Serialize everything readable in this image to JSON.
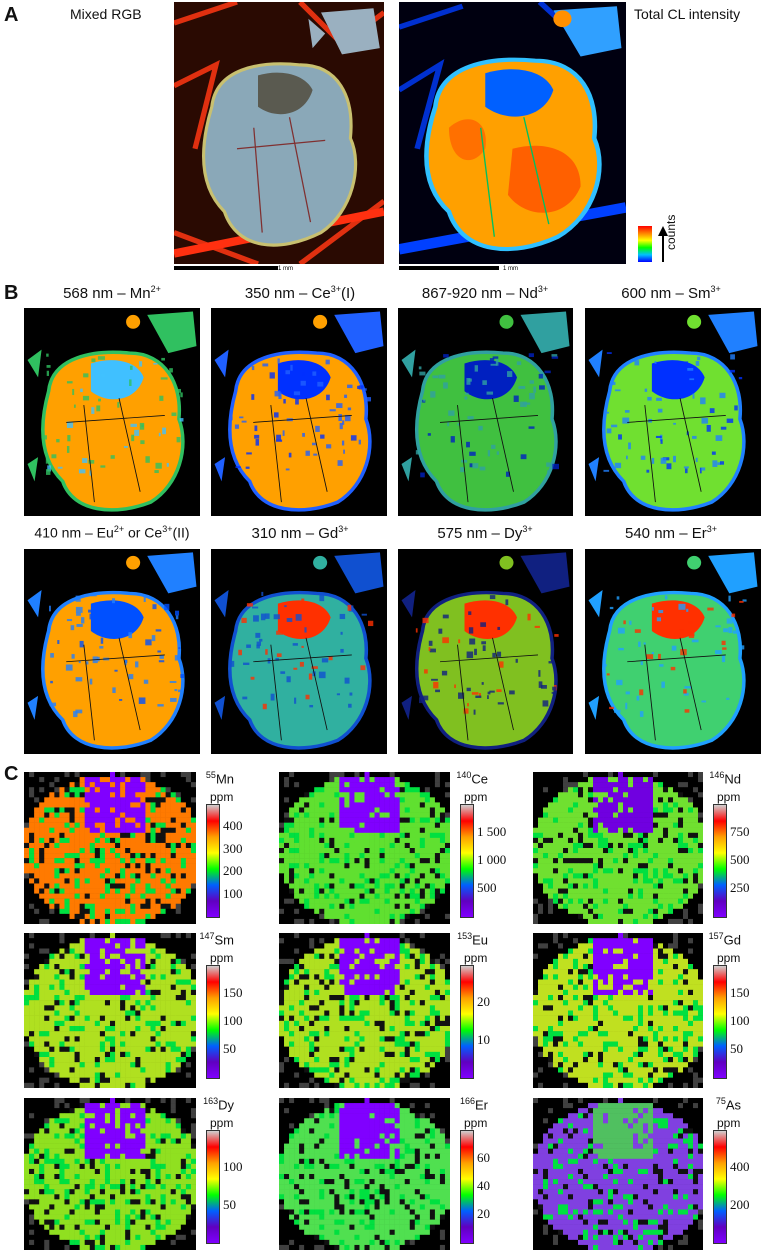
{
  "panel_a": {
    "letter": "A",
    "left_label": "Mixed RGB",
    "right_label": "Total CL intensity",
    "scale_text": "1 mm",
    "legend_label": "counts"
  },
  "panel_b": {
    "letter": "B",
    "titles": [
      {
        "pre": "568 nm – Mn",
        "sup": "2+",
        "post": ""
      },
      {
        "pre": "350 nm – Ce",
        "sup": "3+",
        "post": "(I)"
      },
      {
        "pre": "867-920 nm – Nd",
        "sup": "3+",
        "post": ""
      },
      {
        "pre": "600 nm – Sm",
        "sup": "3+",
        "post": ""
      },
      {
        "pre": "410 nm – Eu",
        "sup": "2+",
        "post": " or Ce",
        "sup2": "3+",
        "post2": "(II)"
      },
      {
        "pre": "310 nm – Gd",
        "sup": "3+",
        "post": ""
      },
      {
        "pre": "575 nm – Dy",
        "sup": "3+",
        "post": ""
      },
      {
        "pre": "540 nm – Er",
        "sup": "3+",
        "post": ""
      }
    ]
  },
  "panel_c": {
    "letter": "C",
    "unit": "ppm",
    "maps": [
      {
        "iso": "55",
        "el": "Mn",
        "ticks": [
          "400",
          "300",
          "200",
          "100"
        ]
      },
      {
        "iso": "140",
        "el": "Ce",
        "ticks": [
          "1 500",
          "1 000",
          "500"
        ]
      },
      {
        "iso": "146",
        "el": "Nd",
        "ticks": [
          "750",
          "500",
          "250"
        ]
      },
      {
        "iso": "147",
        "el": "Sm",
        "ticks": [
          "150",
          "100",
          "50"
        ]
      },
      {
        "iso": "153",
        "el": "Eu",
        "ticks": [
          "20",
          "10"
        ]
      },
      {
        "iso": "157",
        "el": "Gd",
        "ticks": [
          "150",
          "100",
          "50"
        ]
      },
      {
        "iso": "163",
        "el": "Dy",
        "ticks": [
          "100",
          "50"
        ]
      },
      {
        "iso": "166",
        "el": "Er",
        "ticks": [
          "60",
          "40",
          "20"
        ]
      },
      {
        "iso": "75",
        "el": "As",
        "ticks": [
          "400",
          "200"
        ]
      }
    ]
  },
  "colors": {
    "rainbow": [
      "#ff0000",
      "#ff8000",
      "#ffff00",
      "#00ff00",
      "#00c0ff",
      "#0000ff"
    ],
    "ppm_scale": [
      "#d0d0d0",
      "#ff0000",
      "#ffa000",
      "#ffff00",
      "#00ff00",
      "#0060ff",
      "#6000c0",
      "#8000ff"
    ]
  }
}
